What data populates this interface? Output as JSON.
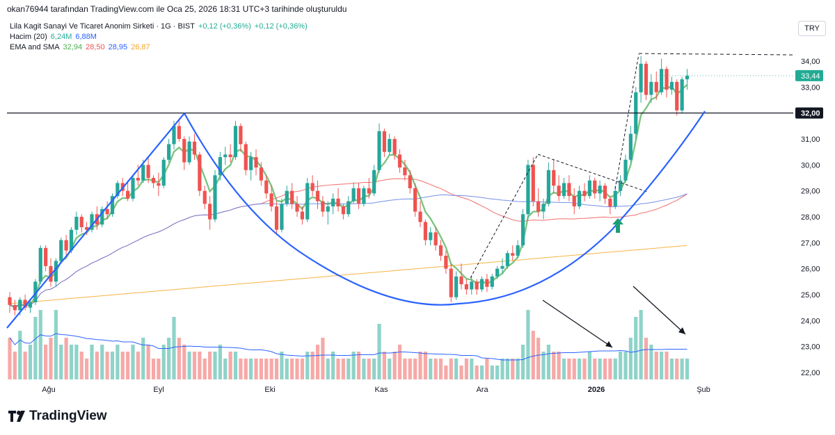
{
  "header": {
    "attribution": "okan76944 tarafından TradingView.com ile Oca 25, 2026 18:31 UTC+3 tarihinde oluşturuldu"
  },
  "legend": {
    "symbol_line": "Lila Kagit Sanayi Ve Ticaret Anonim Sirketi · 1G · BIST",
    "change_1": "+0,12 (+0,36%)",
    "change_2": "+0,12 (+0,36%)",
    "volume_label": "Hacim (20)",
    "volume_value": "6,24M",
    "volume_ma": "6,88M",
    "ma_label": "EMA and SMA",
    "ma_values": [
      "32,94",
      "28,50",
      "28,95",
      "26,87"
    ]
  },
  "currency_button": "TRY",
  "price_tags": {
    "last": "33,44",
    "level": "32,00"
  },
  "logo_text": "TradingView",
  "colors": {
    "up": "#26a69a",
    "down": "#ef5350",
    "ema": "#66bb6a",
    "sma_red": "#ef5350",
    "sma_blue": "#5b7de0",
    "sma_orange": "#f5a623",
    "curve": "#2962ff"
  },
  "chart_data": {
    "type": "candlestick",
    "y_axis": {
      "ticks": [
        "34,00",
        "33,00",
        "32,00",
        "31,00",
        "30,00",
        "29,00",
        "28,00",
        "27,00",
        "26,00",
        "25,00",
        "24,00",
        "23,00",
        "22,00"
      ],
      "ylim": [
        21.8,
        34.6
      ]
    },
    "x_axis": {
      "ticks": [
        "Ağu",
        "Eyl",
        "Eki",
        "Kas",
        "Ara",
        "2026",
        "Şub"
      ]
    },
    "horizontal_level": 32.0,
    "last_price": 33.44,
    "candles_ohlc": [
      [
        24.9,
        25.1,
        24.3,
        24.6
      ],
      [
        24.6,
        24.8,
        24.2,
        24.4
      ],
      [
        24.4,
        24.9,
        24.2,
        24.8
      ],
      [
        24.8,
        25.0,
        24.4,
        24.5
      ],
      [
        24.5,
        24.8,
        24.3,
        24.7
      ],
      [
        24.7,
        25.6,
        24.6,
        25.5
      ],
      [
        25.5,
        26.9,
        25.4,
        26.8
      ],
      [
        26.8,
        26.9,
        25.9,
        26.1
      ],
      [
        26.1,
        26.4,
        25.3,
        25.5
      ],
      [
        25.5,
        26.4,
        25.3,
        26.3
      ],
      [
        26.3,
        27.2,
        26.2,
        27.1
      ],
      [
        27.1,
        27.3,
        26.5,
        26.7
      ],
      [
        26.7,
        27.6,
        26.6,
        27.5
      ],
      [
        27.5,
        28.2,
        27.3,
        28.0
      ],
      [
        28.0,
        28.1,
        27.4,
        27.6
      ],
      [
        27.6,
        27.8,
        27.3,
        27.5
      ],
      [
        27.5,
        28.2,
        27.4,
        28.1
      ],
      [
        28.1,
        28.4,
        27.5,
        27.7
      ],
      [
        27.7,
        28.4,
        27.6,
        28.3
      ],
      [
        28.3,
        28.6,
        27.9,
        28.1
      ],
      [
        28.1,
        28.9,
        28.0,
        28.8
      ],
      [
        28.8,
        29.4,
        28.7,
        29.3
      ],
      [
        29.3,
        29.5,
        28.8,
        29.0
      ],
      [
        29.0,
        29.4,
        28.6,
        28.7
      ],
      [
        28.7,
        29.6,
        28.6,
        29.5
      ],
      [
        29.5,
        30.0,
        29.2,
        29.4
      ],
      [
        29.4,
        30.2,
        29.3,
        30.0
      ],
      [
        30.0,
        30.3,
        29.3,
        29.5
      ],
      [
        29.5,
        29.6,
        29.1,
        29.3
      ],
      [
        29.3,
        29.7,
        28.8,
        29.2
      ],
      [
        29.2,
        30.3,
        29.1,
        30.2
      ],
      [
        30.2,
        31.0,
        30.1,
        30.8
      ],
      [
        30.8,
        31.7,
        30.6,
        31.5
      ],
      [
        31.5,
        31.8,
        30.9,
        31.0
      ],
      [
        31.0,
        31.1,
        29.8,
        30.1
      ],
      [
        30.1,
        31.1,
        30.0,
        30.9
      ],
      [
        30.9,
        31.2,
        30.2,
        30.4
      ],
      [
        30.4,
        30.5,
        28.8,
        29.0
      ],
      [
        29.0,
        29.2,
        28.3,
        28.5
      ],
      [
        28.5,
        28.8,
        27.5,
        27.9
      ],
      [
        27.9,
        29.8,
        27.8,
        29.6
      ],
      [
        29.6,
        30.5,
        29.4,
        30.3
      ],
      [
        30.3,
        30.7,
        30.0,
        30.4
      ],
      [
        30.4,
        30.8,
        30.1,
        30.3
      ],
      [
        30.3,
        31.7,
        30.2,
        31.5
      ],
      [
        31.5,
        31.6,
        30.5,
        30.8
      ],
      [
        30.8,
        30.9,
        29.6,
        29.8
      ],
      [
        29.8,
        30.5,
        29.4,
        30.3
      ],
      [
        30.3,
        30.6,
        29.6,
        29.9
      ],
      [
        29.9,
        30.1,
        29.2,
        29.4
      ],
      [
        29.4,
        29.6,
        28.7,
        28.9
      ],
      [
        28.9,
        29.2,
        28.2,
        28.4
      ],
      [
        28.4,
        28.6,
        27.3,
        27.5
      ],
      [
        27.5,
        28.7,
        27.4,
        28.5
      ],
      [
        28.5,
        29.2,
        28.4,
        29.0
      ],
      [
        29.0,
        29.3,
        28.3,
        28.5
      ],
      [
        28.5,
        28.8,
        28.0,
        28.2
      ],
      [
        28.2,
        28.4,
        27.7,
        27.9
      ],
      [
        27.9,
        29.5,
        27.8,
        29.3
      ],
      [
        29.3,
        29.6,
        28.8,
        29.0
      ],
      [
        29.0,
        29.4,
        28.3,
        28.6
      ],
      [
        28.6,
        28.8,
        28.0,
        28.2
      ],
      [
        28.2,
        28.6,
        27.7,
        28.4
      ],
      [
        28.4,
        28.9,
        28.1,
        28.7
      ],
      [
        28.7,
        29.1,
        28.2,
        28.4
      ],
      [
        28.4,
        28.5,
        27.9,
        28.1
      ],
      [
        28.1,
        28.8,
        28.0,
        28.6
      ],
      [
        28.6,
        29.3,
        28.5,
        29.1
      ],
      [
        29.1,
        29.3,
        28.3,
        28.5
      ],
      [
        28.5,
        29.2,
        28.4,
        29.1
      ],
      [
        29.1,
        29.5,
        28.7,
        28.9
      ],
      [
        28.9,
        30.0,
        28.8,
        29.8
      ],
      [
        29.8,
        31.6,
        29.7,
        31.3
      ],
      [
        31.3,
        31.4,
        30.3,
        30.5
      ],
      [
        30.5,
        31.2,
        30.4,
        31.0
      ],
      [
        31.0,
        31.1,
        30.2,
        30.4
      ],
      [
        30.4,
        30.6,
        29.7,
        29.9
      ],
      [
        29.9,
        30.2,
        29.4,
        29.6
      ],
      [
        29.6,
        29.8,
        28.9,
        29.1
      ],
      [
        29.1,
        29.3,
        28.0,
        28.2
      ],
      [
        28.2,
        28.6,
        27.6,
        27.8
      ],
      [
        27.8,
        27.9,
        26.9,
        27.1
      ],
      [
        27.1,
        27.6,
        26.9,
        27.4
      ],
      [
        27.4,
        27.6,
        26.7,
        26.9
      ],
      [
        26.9,
        27.1,
        26.3,
        26.5
      ],
      [
        26.5,
        26.7,
        25.8,
        26.0
      ],
      [
        26.0,
        26.2,
        24.7,
        24.9
      ],
      [
        24.9,
        25.9,
        24.8,
        25.7
      ],
      [
        25.7,
        26.2,
        25.2,
        25.4
      ],
      [
        25.4,
        25.6,
        25.0,
        25.2
      ],
      [
        25.2,
        25.7,
        25.0,
        25.5
      ],
      [
        25.5,
        25.6,
        25.0,
        25.2
      ],
      [
        25.2,
        25.7,
        25.1,
        25.6
      ],
      [
        25.6,
        25.8,
        25.1,
        25.3
      ],
      [
        25.3,
        25.8,
        25.2,
        25.7
      ],
      [
        25.7,
        26.1,
        25.6,
        26.0
      ],
      [
        26.0,
        26.4,
        25.8,
        26.1
      ],
      [
        26.1,
        26.7,
        26.0,
        26.6
      ],
      [
        26.6,
        26.9,
        26.3,
        26.5
      ],
      [
        26.5,
        27.1,
        26.4,
        26.9
      ],
      [
        26.9,
        28.3,
        26.8,
        28.1
      ],
      [
        28.1,
        30.2,
        27.9,
        30.0
      ],
      [
        30.0,
        30.3,
        28.4,
        28.6
      ],
      [
        28.6,
        29.1,
        28.0,
        28.2
      ],
      [
        28.2,
        28.7,
        27.9,
        28.5
      ],
      [
        28.5,
        30.1,
        28.4,
        29.8
      ],
      [
        29.8,
        30.2,
        28.9,
        29.2
      ],
      [
        29.2,
        29.6,
        28.6,
        28.8
      ],
      [
        28.8,
        29.5,
        28.7,
        29.3
      ],
      [
        29.3,
        29.6,
        28.6,
        28.8
      ],
      [
        28.8,
        29.1,
        28.1,
        28.4
      ],
      [
        28.4,
        29.2,
        28.3,
        29.0
      ],
      [
        29.0,
        29.3,
        28.6,
        28.8
      ],
      [
        28.8,
        29.6,
        28.7,
        29.4
      ],
      [
        29.4,
        29.5,
        28.7,
        28.9
      ],
      [
        28.9,
        29.4,
        28.6,
        29.2
      ],
      [
        29.2,
        29.3,
        28.5,
        28.7
      ],
      [
        28.7,
        28.8,
        28.1,
        28.4
      ],
      [
        28.4,
        29.2,
        28.3,
        29.0
      ],
      [
        29.0,
        29.6,
        28.8,
        29.4
      ],
      [
        29.4,
        30.4,
        29.3,
        30.2
      ],
      [
        30.2,
        31.5,
        30.1,
        31.2
      ],
      [
        31.2,
        33.0,
        31.0,
        32.8
      ],
      [
        32.8,
        34.2,
        32.4,
        33.9
      ],
      [
        33.9,
        34.0,
        32.5,
        32.7
      ],
      [
        32.7,
        33.5,
        32.4,
        33.2
      ],
      [
        33.2,
        33.6,
        32.5,
        32.8
      ],
      [
        32.8,
        34.1,
        32.7,
        33.7
      ],
      [
        33.7,
        33.8,
        32.6,
        32.9
      ],
      [
        32.9,
        33.4,
        32.7,
        33.2
      ],
      [
        33.2,
        33.3,
        31.9,
        32.1
      ],
      [
        32.1,
        33.4,
        32.0,
        33.3
      ],
      [
        33.3,
        33.7,
        32.9,
        33.44
      ]
    ],
    "volume": [
      0.6,
      0.4,
      0.7,
      0.4,
      0.5,
      0.9,
      1.0,
      0.5,
      0.6,
      1.0,
      0.5,
      0.6,
      0.5,
      0.5,
      0.4,
      0.3,
      0.5,
      0.4,
      0.5,
      0.4,
      0.4,
      0.5,
      0.4,
      0.4,
      0.5,
      0.4,
      0.6,
      0.5,
      0.3,
      0.3,
      0.5,
      0.6,
      0.9,
      0.6,
      0.5,
      0.4,
      0.4,
      0.4,
      0.3,
      0.4,
      0.4,
      0.5,
      0.3,
      0.4,
      0.4,
      0.3,
      0.3,
      0.3,
      0.3,
      0.3,
      0.3,
      0.3,
      0.3,
      0.4,
      0.3,
      0.3,
      0.3,
      0.3,
      0.4,
      0.4,
      0.5,
      0.6,
      0.3,
      0.4,
      0.3,
      0.3,
      0.3,
      0.4,
      0.4,
      0.3,
      0.3,
      0.3,
      0.8,
      0.4,
      0.3,
      0.4,
      0.5,
      0.3,
      0.3,
      0.3,
      0.4,
      0.4,
      0.3,
      0.3,
      0.3,
      0.2,
      0.3,
      0.3,
      0.2,
      0.3,
      0.3,
      0.2,
      0.2,
      0.3,
      0.2,
      0.2,
      0.3,
      0.3,
      0.3,
      0.3,
      0.5,
      1.0,
      0.7,
      0.6,
      0.4,
      0.5,
      0.4,
      0.4,
      0.3,
      0.3,
      0.3,
      0.3,
      0.3,
      0.4,
      0.3,
      0.3,
      0.3,
      0.3,
      0.3,
      0.4,
      0.4,
      0.6,
      0.9,
      1.0,
      0.6,
      0.5,
      0.4,
      0.4,
      0.4,
      0.3,
      0.3,
      0.3,
      0.3
    ]
  }
}
